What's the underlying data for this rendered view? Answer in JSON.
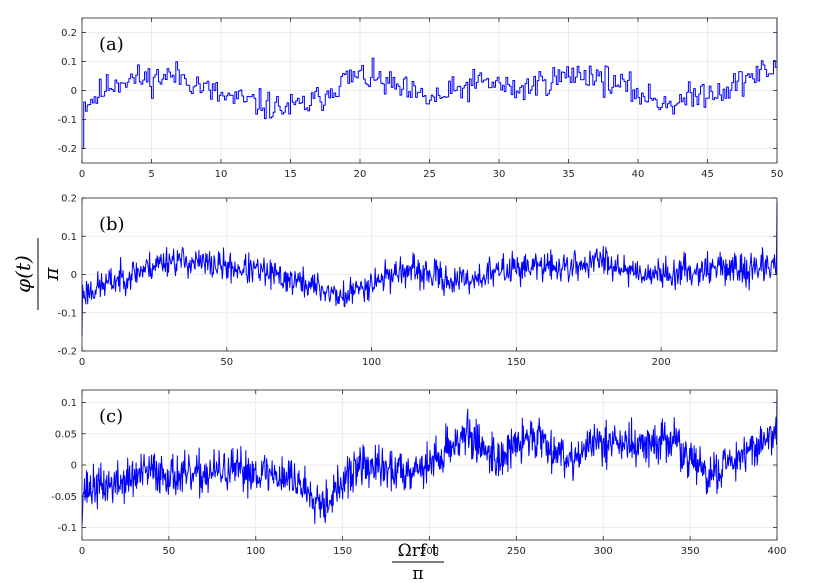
{
  "figure": {
    "ylabel_num": "φ(t)",
    "ylabel_den": "π",
    "xlabel_num": "Ωrf t",
    "xlabel_den": "π"
  },
  "chart_data": [
    {
      "type": "line",
      "panel_label": "(a)",
      "xlim": [
        0,
        50
      ],
      "ylim": [
        -0.25,
        0.25
      ],
      "xticks": [
        0,
        5,
        10,
        15,
        20,
        25,
        30,
        35,
        40,
        45,
        50
      ],
      "yticks": [
        -0.2,
        -0.1,
        0,
        0.1,
        0.2
      ],
      "xtick_labels": [
        "0",
        "5",
        "10",
        "15",
        "20",
        "25",
        "30",
        "35",
        "40",
        "45",
        "50"
      ],
      "ytick_labels": [
        "-0.2",
        "-0.1",
        "0",
        "0.1",
        "0.2"
      ],
      "grid": true,
      "color": "#0000ff",
      "step": true,
      "x": [
        0,
        1,
        2,
        3,
        4,
        5,
        6,
        7,
        8,
        9,
        10,
        11,
        12,
        13,
        14,
        15,
        16,
        17,
        18,
        19,
        20,
        21,
        22,
        23,
        24,
        25,
        26,
        27,
        28,
        29,
        30,
        31,
        32,
        33,
        34,
        35,
        36,
        37,
        38,
        39,
        40,
        41,
        42,
        43,
        44,
        45,
        46,
        47,
        48,
        49,
        50
      ],
      "y": [
        -0.05,
        -0.02,
        0.02,
        0.04,
        0.04,
        0.04,
        0.05,
        0.05,
        0.03,
        0.0,
        -0.02,
        -0.03,
        -0.04,
        -0.05,
        -0.06,
        -0.06,
        -0.05,
        -0.03,
        0.01,
        0.04,
        0.05,
        0.04,
        0.02,
        0.0,
        -0.02,
        -0.03,
        -0.02,
        0.0,
        0.02,
        0.03,
        0.02,
        0.0,
        0.01,
        0.03,
        0.04,
        0.05,
        0.06,
        0.05,
        0.03,
        0.01,
        -0.01,
        -0.03,
        -0.04,
        -0.04,
        -0.02,
        0.0,
        0.0,
        0.02,
        0.05,
        0.06,
        0.08
      ],
      "noise": 0.035,
      "samples": 400,
      "seed": 11
    },
    {
      "type": "line",
      "panel_label": "(b)",
      "xlim": [
        0,
        240
      ],
      "ylim": [
        -0.2,
        0.2
      ],
      "xticks": [
        0,
        50,
        100,
        150,
        200
      ],
      "yticks": [
        -0.2,
        -0.1,
        0,
        0.1,
        0.2
      ],
      "xtick_labels": [
        "0",
        "50",
        "100",
        "150",
        "200"
      ],
      "ytick_labels": [
        "-0.2",
        "-0.1",
        "0",
        "0.1",
        "0.2"
      ],
      "grid": true,
      "color": "#0000ff",
      "step": false,
      "x": [
        0,
        10,
        20,
        30,
        40,
        50,
        60,
        70,
        80,
        90,
        100,
        110,
        120,
        130,
        140,
        150,
        160,
        170,
        180,
        190,
        200,
        210,
        220,
        230,
        240
      ],
      "y": [
        -0.05,
        -0.02,
        0.01,
        0.04,
        0.03,
        0.02,
        0.01,
        -0.01,
        -0.03,
        -0.06,
        -0.02,
        0.01,
        0.0,
        -0.02,
        0.0,
        0.02,
        0.02,
        0.02,
        0.04,
        0.01,
        0.0,
        0.01,
        0.02,
        0.01,
        0.03
      ],
      "noise": 0.028,
      "samples": 1100,
      "seed": 23
    },
    {
      "type": "line",
      "panel_label": "(c)",
      "xlim": [
        0,
        400
      ],
      "ylim": [
        -0.12,
        0.12
      ],
      "xticks": [
        0,
        50,
        100,
        150,
        200,
        250,
        300,
        350,
        400
      ],
      "yticks": [
        -0.1,
        -0.05,
        0,
        0.05,
        0.1
      ],
      "xtick_labels": [
        "0",
        "50",
        "100",
        "150",
        "200",
        "250",
        "300",
        "350",
        "400"
      ],
      "ytick_labels": [
        "-0.1",
        "-0.05",
        "0",
        "0.05",
        "0.1"
      ],
      "grid": true,
      "color": "#0000ff",
      "step": false,
      "x": [
        0,
        20,
        40,
        60,
        80,
        100,
        120,
        140,
        160,
        180,
        200,
        220,
        240,
        260,
        280,
        300,
        320,
        340,
        360,
        380,
        400
      ],
      "y": [
        -0.04,
        -0.03,
        -0.01,
        -0.02,
        -0.01,
        -0.01,
        -0.02,
        -0.06,
        0.0,
        -0.01,
        0.0,
        0.05,
        0.01,
        0.05,
        0.01,
        0.04,
        0.03,
        0.04,
        -0.02,
        0.02,
        0.05
      ],
      "noise": 0.024,
      "samples": 1400,
      "seed": 37
    }
  ]
}
